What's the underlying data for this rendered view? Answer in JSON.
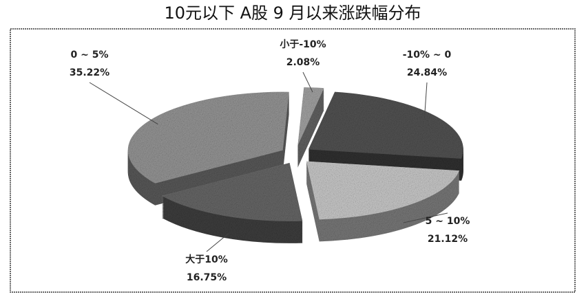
{
  "chart_data": {
    "type": "pie",
    "title": "10元以下 A股 9 月以来涨跌幅分布",
    "categories": [
      "小于-10%",
      "-10% ~ 0",
      "5 ~ 10%",
      "大于10%",
      "0 ~ 5%"
    ],
    "values": [
      2.08,
      24.84,
      21.12,
      16.75,
      35.22
    ],
    "value_labels": [
      "2.08%",
      "24.84%",
      "21.12%",
      "16.75%",
      "35.22%"
    ],
    "colors": [
      "#a8a8a8",
      "#555555",
      "#cfcfcf",
      "#6a6a6a",
      "#9a9a9a"
    ]
  }
}
